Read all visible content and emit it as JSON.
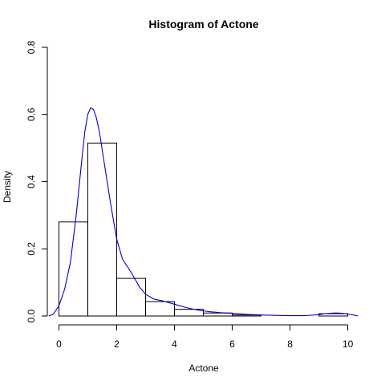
{
  "chart_data": {
    "type": "histogram",
    "title": "Histogram of Actone",
    "xlabel": "Actone",
    "ylabel": "Density",
    "xlim": [
      -0.4,
      10.4
    ],
    "ylim": [
      0,
      0.8
    ],
    "xticks": [
      "0",
      "2",
      "4",
      "6",
      "8",
      "10"
    ],
    "yticks": [
      "0.0",
      "0.2",
      "0.4",
      "0.6",
      "0.8"
    ],
    "grid": false,
    "bins": [
      {
        "x0": 0,
        "x1": 1,
        "density": 0.28
      },
      {
        "x0": 1,
        "x1": 2,
        "density": 0.515
      },
      {
        "x0": 2,
        "x1": 3,
        "density": 0.112
      },
      {
        "x0": 3,
        "x1": 4,
        "density": 0.043
      },
      {
        "x0": 4,
        "x1": 5,
        "density": 0.02
      },
      {
        "x0": 5,
        "x1": 6,
        "density": 0.009
      },
      {
        "x0": 6,
        "x1": 7,
        "density": 0.003
      },
      {
        "x0": 7,
        "x1": 8,
        "density": 0.0
      },
      {
        "x0": 8,
        "x1": 9,
        "density": 0.0
      },
      {
        "x0": 9,
        "x1": 10,
        "density": 0.007
      }
    ],
    "density_curve": {
      "color": "#0000cc",
      "x": [
        -0.35,
        -0.2,
        0,
        0.2,
        0.4,
        0.6,
        0.8,
        0.9,
        1.0,
        1.1,
        1.2,
        1.3,
        1.4,
        1.6,
        1.8,
        2.0,
        2.2,
        2.5,
        2.8,
        3.0,
        3.3,
        3.6,
        4.0,
        4.4,
        4.8,
        5.2,
        5.6,
        6.0,
        6.5,
        7.0,
        7.5,
        8.0,
        8.5,
        9.0,
        9.2,
        9.4,
        9.6,
        9.8,
        10.0,
        10.2,
        10.35
      ],
      "y": [
        0.0,
        0.005,
        0.03,
        0.08,
        0.16,
        0.3,
        0.47,
        0.55,
        0.6,
        0.62,
        0.615,
        0.59,
        0.55,
        0.44,
        0.33,
        0.23,
        0.17,
        0.13,
        0.085,
        0.065,
        0.05,
        0.045,
        0.035,
        0.025,
        0.018,
        0.013,
        0.01,
        0.008,
        0.005,
        0.003,
        0.002,
        0.001,
        0.001,
        0.004,
        0.007,
        0.008,
        0.009,
        0.008,
        0.006,
        0.003,
        0.0
      ]
    }
  }
}
